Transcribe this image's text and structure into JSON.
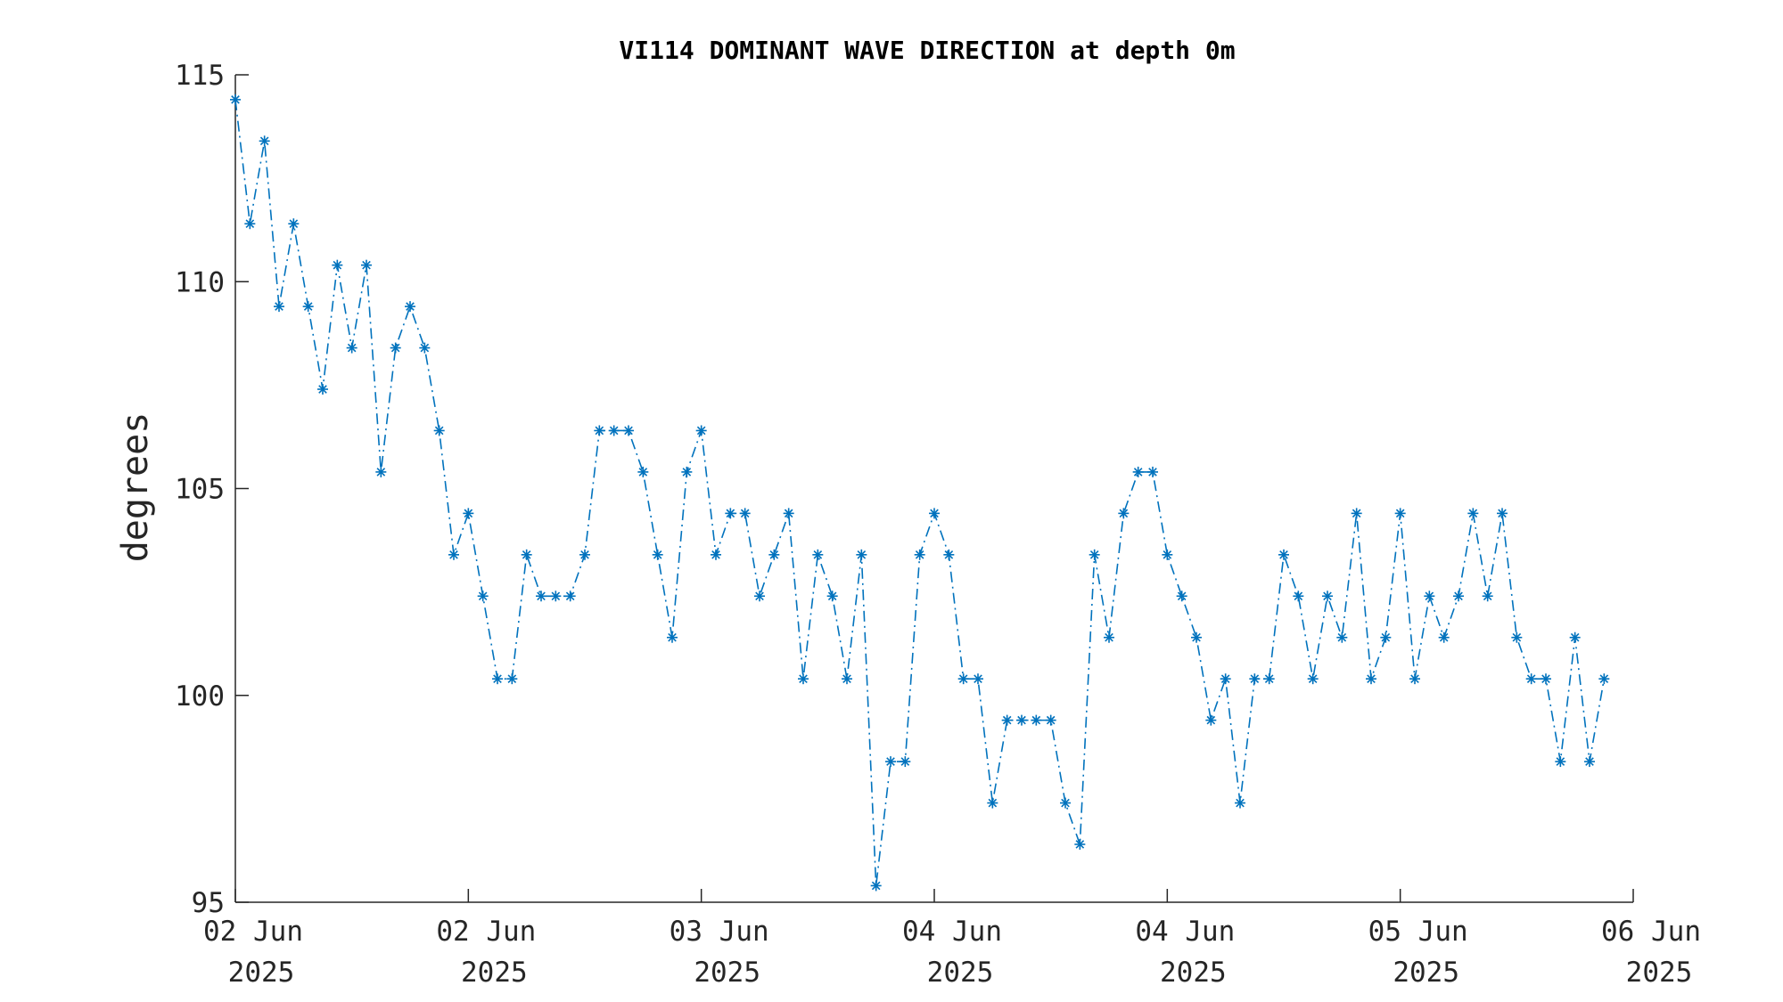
{
  "chart_data": {
    "type": "line",
    "title": "VI114 DOMINANT WAVE DIRECTION at depth 0m",
    "xlabel": "",
    "ylabel": "degrees",
    "ylim": [
      95,
      115
    ],
    "xlim": [
      0,
      96
    ],
    "yticks": [
      95,
      100,
      105,
      110,
      115
    ],
    "xticks": [
      {
        "x": 0,
        "line1": "02 Jun",
        "line2": "2025"
      },
      {
        "x": 16,
        "line1": "02 Jun",
        "line2": "2025"
      },
      {
        "x": 32,
        "line1": "03 Jun",
        "line2": "2025"
      },
      {
        "x": 48,
        "line1": "04 Jun",
        "line2": "2025"
      },
      {
        "x": 64,
        "line1": "04 Jun",
        "line2": "2025"
      },
      {
        "x": 80,
        "line1": "05 Jun",
        "line2": "2025"
      },
      {
        "x": 96,
        "line1": "06 Jun",
        "line2": "2025"
      }
    ],
    "grid": false,
    "series": [
      {
        "color": "#0072BD",
        "line_style": "dash-dot",
        "marker": "asterisk",
        "values": [
          114.4,
          111.4,
          113.4,
          109.4,
          111.4,
          109.4,
          107.4,
          110.4,
          108.4,
          110.4,
          105.4,
          108.4,
          109.4,
          108.4,
          106.4,
          103.4,
          104.4,
          102.4,
          100.4,
          100.4,
          103.4,
          102.4,
          102.4,
          102.4,
          103.4,
          106.4,
          106.4,
          106.4,
          105.4,
          103.4,
          101.4,
          105.4,
          106.4,
          103.4,
          104.4,
          104.4,
          102.4,
          103.4,
          104.4,
          100.4,
          103.4,
          102.4,
          100.4,
          103.4,
          95.4,
          98.4,
          98.4,
          103.4,
          104.4,
          103.4,
          100.4,
          100.4,
          97.4,
          99.4,
          99.4,
          99.4,
          99.4,
          97.4,
          96.4,
          103.4,
          101.4,
          104.4,
          105.4,
          105.4,
          103.4,
          102.4,
          101.4,
          99.4,
          100.4,
          97.4,
          100.4,
          100.4,
          103.4,
          102.4,
          100.4,
          102.4,
          101.4,
          104.4,
          100.4,
          101.4,
          104.4,
          100.4,
          102.4,
          101.4,
          102.4,
          104.4,
          102.4,
          104.4,
          101.4,
          100.4,
          100.4,
          98.4,
          101.4,
          98.4,
          100.4
        ]
      }
    ]
  }
}
